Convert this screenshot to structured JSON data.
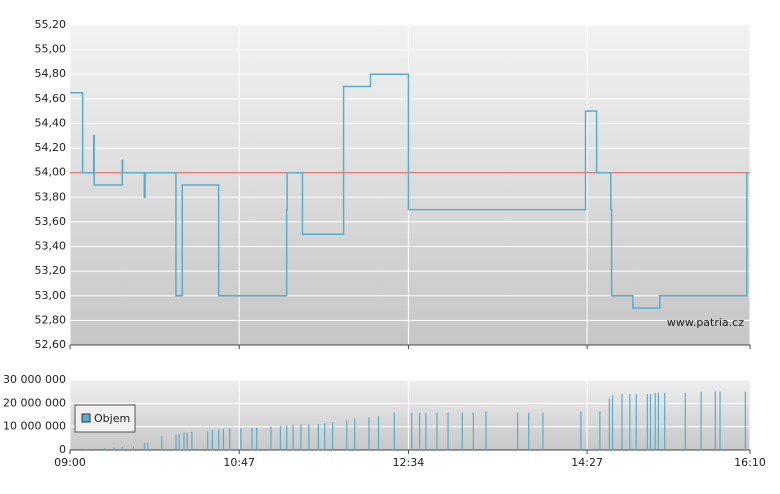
{
  "chart_data": [
    {
      "type": "line",
      "color": "#5aaccc",
      "annotation": "www.patria.cz",
      "reference_line": {
        "value": 54.0,
        "color": "#e05050"
      },
      "x": [
        0,
        6,
        8,
        15,
        15.3,
        33,
        33.3,
        47,
        47.5,
        67,
        71,
        94,
        137,
        137.3,
        147,
        173,
        190,
        214,
        326,
        333,
        342,
        342.5,
        356,
        373,
        428,
        429
      ],
      "values": [
        54.65,
        54.65,
        54.0,
        54.3,
        53.9,
        54.1,
        54.0,
        53.8,
        54.0,
        53.0,
        53.9,
        53.0,
        53.7,
        54.0,
        53.5,
        54.7,
        54.8,
        53.7,
        54.5,
        54.0,
        53.7,
        53.0,
        52.9,
        53.0,
        54.0,
        54.0
      ],
      "xlim": [
        0,
        430
      ],
      "ylim": [
        52.6,
        55.2
      ],
      "yticks": [
        {
          "value": 55.2,
          "label": "55,20"
        },
        {
          "value": 55.0,
          "label": "55,00"
        },
        {
          "value": 54.8,
          "label": "54,80"
        },
        {
          "value": 54.6,
          "label": "54,60"
        },
        {
          "value": 54.4,
          "label": "54,40"
        },
        {
          "value": 54.2,
          "label": "54,20"
        },
        {
          "value": 54.0,
          "label": "54,00"
        },
        {
          "value": 53.8,
          "label": "53,80"
        },
        {
          "value": 53.6,
          "label": "53,60"
        },
        {
          "value": 53.4,
          "label": "53,40"
        },
        {
          "value": 53.2,
          "label": "53,20"
        },
        {
          "value": 53.0,
          "label": "53,00"
        },
        {
          "value": 52.8,
          "label": "52,80"
        },
        {
          "value": 52.6,
          "label": "52,60"
        }
      ],
      "grid": true
    },
    {
      "type": "bar",
      "x": [
        10,
        16,
        22,
        28,
        33,
        40,
        47,
        49,
        58,
        67,
        69,
        72,
        74,
        77,
        87,
        90,
        94,
        97,
        101,
        108,
        115,
        118,
        127,
        133,
        137,
        141,
        146,
        151,
        157,
        161,
        166,
        175,
        180,
        189,
        195,
        205,
        216,
        221,
        225,
        232,
        239,
        248,
        255,
        263,
        283,
        290,
        299,
        323,
        335,
        341,
        343,
        349,
        354,
        358,
        365,
        367,
        370,
        372,
        376,
        389,
        399,
        408,
        411,
        427
      ],
      "series": [
        {
          "name": "Objem",
          "color": "#5aaccc",
          "values": [
            300000,
            500000,
            800000,
            1000000,
            1200000,
            1500000,
            3000000,
            3200000,
            6000000,
            6500000,
            7000000,
            7500000,
            7500000,
            7800000,
            8000000,
            8500000,
            9000000,
            9000000,
            9200000,
            9300000,
            9500000,
            9500000,
            10000000,
            10200000,
            10500000,
            10800000,
            11000000,
            11000000,
            11200000,
            11500000,
            12000000,
            12500000,
            13500000,
            14000000,
            14500000,
            16000000,
            16000000,
            16000000,
            16000000,
            16000000,
            16000000,
            16000000,
            16000000,
            16500000,
            16000000,
            16000000,
            16000000,
            16500000,
            16500000,
            22000000,
            23500000,
            24000000,
            24000000,
            24000000,
            24000000,
            24000000,
            24500000,
            24500000,
            24500000,
            24500000,
            25000000,
            25000000,
            25000000,
            25000000
          ]
        }
      ],
      "xlim": [
        0,
        430
      ],
      "ylim": [
        0,
        30000000
      ],
      "xticks": [
        {
          "value": 0,
          "label": "09:00"
        },
        {
          "value": 107,
          "label": "10:47"
        },
        {
          "value": 214,
          "label": "12:34"
        },
        {
          "value": 327,
          "label": "14:27"
        },
        {
          "value": 430,
          "label": "16:10"
        }
      ],
      "yticks": [
        0,
        {
          "value": 10000000,
          "label": "10 000 000"
        },
        {
          "value": 20000000,
          "label": "20 000 000"
        },
        {
          "value": 30000000,
          "label": "30 000 000"
        }
      ],
      "grid": true
    }
  ]
}
